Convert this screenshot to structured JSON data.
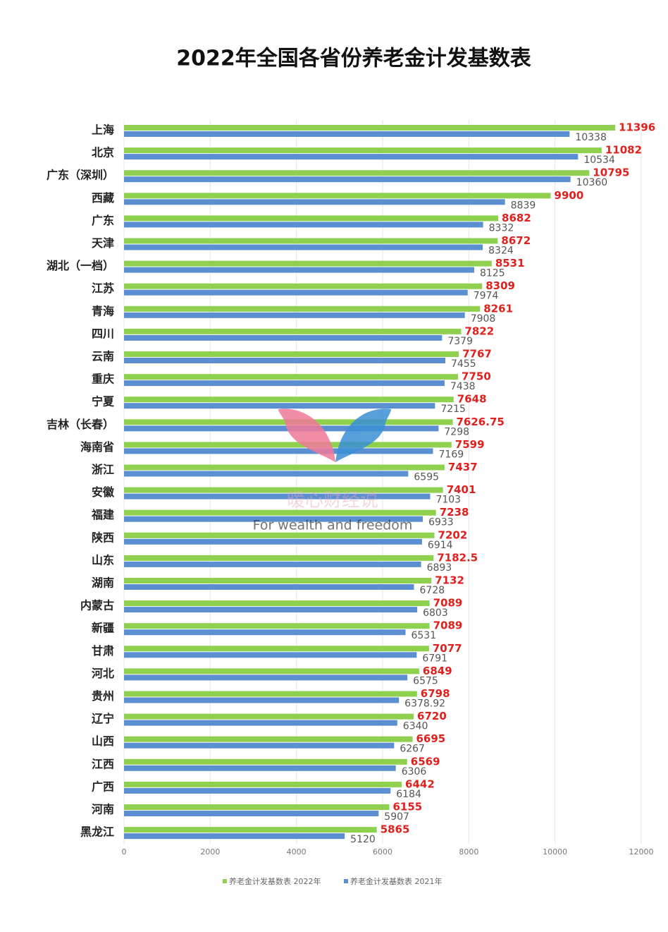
{
  "chart_data": {
    "type": "hbar",
    "title": "2022年全国各省份养老金计发基数表",
    "categories": [
      "上海",
      "北京",
      "广东（深圳）",
      "西藏",
      "广东",
      "天津",
      "湖北（一档）",
      "江苏",
      "青海",
      "四川",
      "云南",
      "重庆",
      "宁夏",
      "吉林（长春）",
      "海南省",
      "浙江",
      "安徽",
      "福建",
      "陕西",
      "山东",
      "湖南",
      "内蒙古",
      "新疆",
      "甘肃",
      "河北",
      "贵州",
      "辽宁",
      "山西",
      "江西",
      "广西",
      "河南",
      "黑龙江"
    ],
    "series": [
      {
        "name": "养老金计发基数表 2022年",
        "color": "#8fd14f",
        "values": [
          11396,
          11082,
          10795,
          9900,
          8682,
          8672,
          8531,
          8309,
          8261,
          7822,
          7767,
          7750,
          7648,
          7626.75,
          7599,
          7437,
          7401,
          7238,
          7202,
          7182.5,
          7132,
          7089,
          7089,
          7077,
          6849,
          6798,
          6720,
          6695,
          6569,
          6442,
          6155,
          5865
        ]
      },
      {
        "name": "养老金计发基数表 2021年",
        "color": "#5b8fd1",
        "values": [
          10338,
          10534,
          10360,
          8839,
          8332,
          8324,
          8125,
          7974,
          7908,
          7379,
          7455,
          7438,
          7215,
          7298,
          7169,
          6595,
          7103,
          6933,
          6914,
          6893,
          6728,
          6803,
          6531,
          6791,
          6575,
          6378.92,
          6340,
          6267,
          6306,
          6184,
          5907,
          5120
        ]
      }
    ],
    "xlim": [
      0,
      12000
    ],
    "xticks": [
      0,
      2000,
      4000,
      6000,
      8000,
      10000,
      12000
    ],
    "grid": true
  },
  "watermark": {
    "text": "暖心财经说",
    "slogan": "For wealth and freedom"
  }
}
